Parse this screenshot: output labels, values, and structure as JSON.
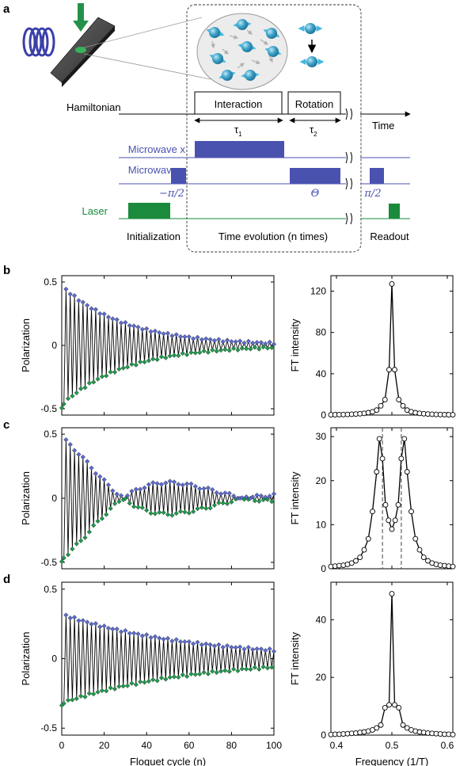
{
  "panel_labels": {
    "a": "a",
    "b": "b",
    "c": "c",
    "d": "d"
  },
  "schematic": {
    "hamiltonian_label": "Hamiltonian",
    "interaction_label": "Interaction",
    "rotation_label": "Rotation",
    "time_label": "Time",
    "tau1_label": "τ",
    "tau1_sub": "1",
    "tau2_label": "τ",
    "tau2_sub": "2",
    "microwave_x_label": "Microwave x",
    "microwave_y_label": "Microwave y",
    "laser_label": "Laser",
    "minus_pi_half": "−π/2",
    "theta_label": "Θ",
    "pi_half": "π/2",
    "initialization_label": "Initialization",
    "time_evolution_label": "Time evolution (n times)",
    "readout_label": "Readout",
    "colors": {
      "microwave": "#4a52b0",
      "laser": "#1a8a3c",
      "spin": "#3fa3c8",
      "arrow": "#45b8e0"
    }
  },
  "chart_data": [
    {
      "id": "b-left",
      "type": "line",
      "xlabel": "Floquet cycle (n)",
      "ylabel": "Polarization",
      "xlim": [
        0,
        100
      ],
      "ylim": [
        -0.55,
        0.55
      ],
      "yticks": [
        "0.5",
        "0",
        "-0.5"
      ],
      "xticks": [
        "0",
        "20",
        "40",
        "60",
        "80",
        "100"
      ],
      "series": [
        {
          "model": {
            "p0": 0.47,
            "decay_tau": 30,
            "beat_period": 0
          }
        }
      ],
      "colors": {
        "even_markers": "#5b6bd0",
        "odd_markers": "#1e9a4c",
        "line": "#000000"
      }
    },
    {
      "id": "b-right",
      "type": "line",
      "xlabel": "Frequency (1/T)",
      "ylabel": "FT intensity",
      "xlim": [
        0.39,
        0.61
      ],
      "ylim": [
        0,
        135
      ],
      "yticks": [
        "0",
        "40",
        "80",
        "120"
      ],
      "xticks": [
        "0.4",
        "0.5",
        "0.6"
      ],
      "x": [
        0.39,
        0.3975,
        0.405,
        0.4125,
        0.42,
        0.4275,
        0.435,
        0.4425,
        0.45,
        0.4575,
        0.465,
        0.4725,
        0.48,
        0.4875,
        0.495,
        0.5,
        0.505,
        0.5125,
        0.52,
        0.5275,
        0.535,
        0.5425,
        0.55,
        0.5575,
        0.565,
        0.5725,
        0.58,
        0.5875,
        0.595,
        0.6025,
        0.61
      ],
      "y": [
        0.3,
        0.35,
        0.4,
        0.5,
        0.6,
        0.8,
        1.0,
        1.3,
        1.7,
        2.3,
        3.2,
        4.8,
        9,
        15,
        44,
        127,
        44,
        15,
        9,
        4.8,
        3.2,
        2.3,
        1.7,
        1.3,
        1.0,
        0.8,
        0.6,
        0.5,
        0.4,
        0.35,
        0.3
      ]
    },
    {
      "id": "c-left",
      "type": "line",
      "xlabel": "Floquet cycle (n)",
      "ylabel": "Polarization",
      "xlim": [
        0,
        100
      ],
      "ylim": [
        -0.55,
        0.55
      ],
      "yticks": [
        "0.5",
        "0",
        "-0.5"
      ],
      "xticks": [
        "0",
        "20",
        "40",
        "60",
        "80",
        "100"
      ],
      "series": [
        {
          "model": {
            "p0": 0.47,
            "decay_tau": 40,
            "beat_period": 58
          }
        }
      ],
      "colors": {
        "even_markers": "#5b6bd0",
        "odd_markers": "#1e9a4c",
        "line": "#000000"
      }
    },
    {
      "id": "c-right",
      "type": "line",
      "xlabel": "Frequency (1/T)",
      "ylabel": "FT intensity",
      "xlim": [
        0.39,
        0.61
      ],
      "ylim": [
        0,
        32
      ],
      "yticks": [
        "0",
        "10",
        "20",
        "30"
      ],
      "xticks": [
        "0.4",
        "0.5",
        "0.6"
      ],
      "dashed_x": [
        0.483,
        0.517
      ],
      "x": [
        0.39,
        0.3975,
        0.405,
        0.4125,
        0.42,
        0.4275,
        0.435,
        0.4425,
        0.45,
        0.4575,
        0.465,
        0.4725,
        0.4775,
        0.483,
        0.4885,
        0.494,
        0.5,
        0.506,
        0.5115,
        0.517,
        0.5225,
        0.5275,
        0.535,
        0.5425,
        0.55,
        0.5575,
        0.565,
        0.5725,
        0.58,
        0.5875,
        0.595,
        0.6025,
        0.61
      ],
      "y": [
        0.5,
        0.6,
        0.7,
        0.8,
        1.0,
        1.3,
        1.8,
        2.6,
        4.3,
        6.8,
        13,
        22,
        29.5,
        25,
        14.5,
        11,
        9,
        11,
        14.5,
        25,
        29.5,
        22,
        13,
        6.8,
        4.3,
        2.6,
        1.8,
        1.3,
        1.0,
        0.8,
        0.7,
        0.6,
        0.5
      ]
    },
    {
      "id": "d-left",
      "type": "line",
      "xlabel": "Floquet cycle (n)",
      "ylabel": "Polarization",
      "xlim": [
        0,
        100
      ],
      "ylim": [
        -0.55,
        0.55
      ],
      "yticks": [
        "0.5",
        "0",
        "-0.5"
      ],
      "xticks": [
        "0",
        "20",
        "40",
        "60",
        "80",
        "100"
      ],
      "series": [
        {
          "model": {
            "p0": 0.32,
            "decay_tau": 60,
            "beat_period": 0
          }
        }
      ],
      "colors": {
        "even_markers": "#5b6bd0",
        "odd_markers": "#1e9a4c",
        "line": "#000000"
      }
    },
    {
      "id": "d-right",
      "type": "line",
      "xlabel": "Frequency (1/T)",
      "ylabel": "FT intensity",
      "xlim": [
        0.39,
        0.61
      ],
      "ylim": [
        0,
        53
      ],
      "yticks": [
        "0",
        "20",
        "40"
      ],
      "xticks": [
        "0.4",
        "0.5",
        "0.6"
      ],
      "x": [
        0.39,
        0.3975,
        0.405,
        0.4125,
        0.42,
        0.4275,
        0.435,
        0.4425,
        0.45,
        0.4575,
        0.465,
        0.4725,
        0.48,
        0.4875,
        0.495,
        0.5,
        0.505,
        0.5125,
        0.52,
        0.5275,
        0.535,
        0.5425,
        0.55,
        0.5575,
        0.565,
        0.5725,
        0.58,
        0.5875,
        0.595,
        0.6025,
        0.61
      ],
      "y": [
        0.2,
        0.3,
        0.3,
        0.4,
        0.5,
        0.6,
        0.7,
        0.9,
        1.1,
        1.4,
        1.8,
        2.5,
        3.5,
        9.5,
        10.5,
        49,
        10.5,
        9.5,
        3.5,
        2.5,
        1.8,
        1.4,
        1.1,
        0.9,
        0.7,
        0.6,
        0.5,
        0.4,
        0.3,
        0.3,
        0.2
      ]
    }
  ]
}
